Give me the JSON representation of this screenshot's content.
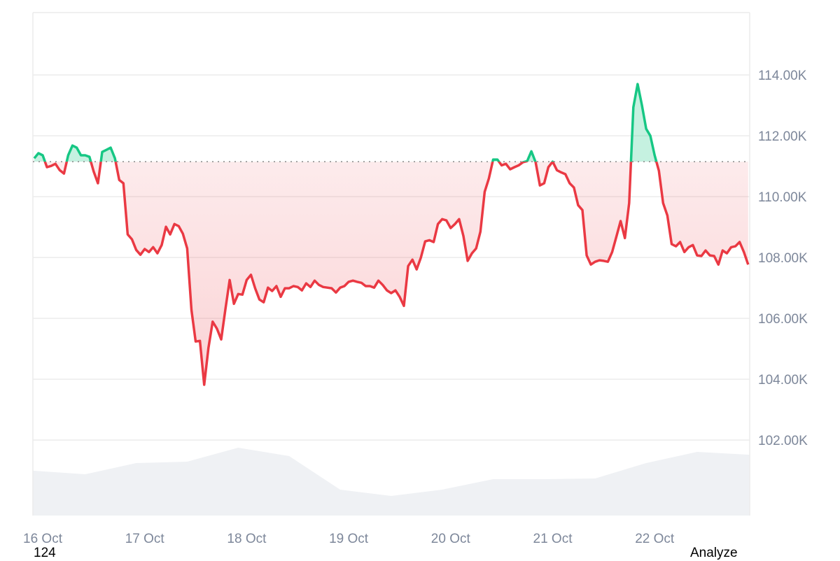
{
  "chart_data": {
    "type": "line",
    "title": "",
    "xlabel": "",
    "ylabel": "",
    "ylim": [
      99.52,
      116.05
    ],
    "y_unit_suffix": "K",
    "y_ticks": [
      102,
      104,
      106,
      108,
      110,
      112,
      114
    ],
    "y_tick_labels": [
      "102.00K",
      "104.00K",
      "106.00K",
      "108.00K",
      "110.00K",
      "112.00K",
      "114.00K"
    ],
    "x_tick_labels": [
      "16 Oct",
      "17 Oct",
      "18 Oct",
      "19 Oct",
      "20 Oct",
      "21 Oct",
      "22 Oct"
    ],
    "grid": true,
    "baseline": 111.15,
    "colors": {
      "above": "#16c784",
      "below": "#ea3943",
      "volume": "#eff1f4",
      "grid": "#ececec",
      "axis_text": "#7d879a"
    },
    "series": [
      {
        "time": [
          "15 Oct 22:00",
          "15 Oct 23:00",
          "16 Oct 00:00",
          "16 Oct 01:00",
          "16 Oct 02:00",
          "16 Oct 03:00",
          "16 Oct 04:00",
          "16 Oct 05:00",
          "16 Oct 06:00",
          "16 Oct 07:00",
          "16 Oct 08:00",
          "16 Oct 09:00",
          "16 Oct 10:00",
          "16 Oct 11:00",
          "16 Oct 12:00",
          "16 Oct 13:00",
          "16 Oct 14:00",
          "16 Oct 15:00",
          "16 Oct 16:00",
          "16 Oct 17:00",
          "16 Oct 18:00",
          "16 Oct 19:00",
          "16 Oct 20:00",
          "16 Oct 21:00",
          "16 Oct 22:00",
          "16 Oct 23:00",
          "17 Oct 00:00",
          "17 Oct 01:00",
          "17 Oct 02:00",
          "17 Oct 03:00",
          "17 Oct 04:00",
          "17 Oct 05:00",
          "17 Oct 06:00",
          "17 Oct 07:00",
          "17 Oct 08:00",
          "17 Oct 09:00",
          "17 Oct 10:00",
          "17 Oct 11:00",
          "17 Oct 12:00",
          "17 Oct 13:00",
          "17 Oct 14:00",
          "17 Oct 15:00",
          "17 Oct 16:00",
          "17 Oct 17:00",
          "17 Oct 18:00",
          "17 Oct 19:00",
          "17 Oct 20:00",
          "17 Oct 21:00",
          "17 Oct 22:00",
          "17 Oct 23:00",
          "18 Oct 00:00",
          "18 Oct 01:00",
          "18 Oct 02:00",
          "18 Oct 03:00",
          "18 Oct 04:00",
          "18 Oct 05:00",
          "18 Oct 06:00",
          "18 Oct 07:00",
          "18 Oct 08:00",
          "18 Oct 09:00",
          "18 Oct 10:00",
          "18 Oct 11:00",
          "18 Oct 12:00",
          "18 Oct 13:00",
          "18 Oct 14:00",
          "18 Oct 15:00",
          "18 Oct 16:00",
          "18 Oct 17:00",
          "18 Oct 18:00",
          "18 Oct 19:00",
          "18 Oct 20:00",
          "18 Oct 21:00",
          "18 Oct 22:00",
          "18 Oct 23:00",
          "19 Oct 00:00",
          "19 Oct 01:00",
          "19 Oct 02:00",
          "19 Oct 03:00",
          "19 Oct 04:00",
          "19 Oct 05:00",
          "19 Oct 06:00",
          "19 Oct 07:00",
          "19 Oct 08:00",
          "19 Oct 09:00",
          "19 Oct 10:00",
          "19 Oct 11:00",
          "19 Oct 12:00",
          "19 Oct 13:00",
          "19 Oct 14:00",
          "19 Oct 15:00",
          "19 Oct 16:00",
          "19 Oct 17:00",
          "19 Oct 18:00",
          "19 Oct 19:00",
          "19 Oct 20:00",
          "19 Oct 21:00",
          "19 Oct 22:00",
          "19 Oct 23:00",
          "20 Oct 00:00",
          "20 Oct 01:00",
          "20 Oct 02:00",
          "20 Oct 03:00",
          "20 Oct 04:00",
          "20 Oct 05:00",
          "20 Oct 06:00",
          "20 Oct 07:00",
          "20 Oct 08:00",
          "20 Oct 09:00",
          "20 Oct 10:00",
          "20 Oct 11:00",
          "20 Oct 12:00",
          "20 Oct 13:00",
          "20 Oct 14:00",
          "20 Oct 15:00",
          "20 Oct 16:00",
          "20 Oct 17:00",
          "20 Oct 18:00",
          "20 Oct 19:00",
          "20 Oct 20:00",
          "20 Oct 21:00",
          "20 Oct 22:00",
          "20 Oct 23:00",
          "21 Oct 00:00",
          "21 Oct 01:00",
          "21 Oct 02:00",
          "21 Oct 03:00",
          "21 Oct 04:00",
          "21 Oct 05:00",
          "21 Oct 06:00",
          "21 Oct 07:00",
          "21 Oct 08:00",
          "21 Oct 09:00",
          "21 Oct 10:00",
          "21 Oct 11:00",
          "21 Oct 12:00",
          "21 Oct 13:00",
          "21 Oct 14:00",
          "21 Oct 15:00",
          "21 Oct 16:00",
          "21 Oct 17:00",
          "21 Oct 18:00",
          "21 Oct 19:00",
          "21 Oct 20:00",
          "21 Oct 21:00",
          "21 Oct 22:00",
          "21 Oct 23:00",
          "22 Oct 00:00",
          "22 Oct 01:00",
          "22 Oct 02:00",
          "22 Oct 03:00",
          "22 Oct 04:00",
          "22 Oct 05:00",
          "22 Oct 06:00",
          "22 Oct 07:00",
          "22 Oct 08:00",
          "22 Oct 09:00",
          "22 Oct 10:00",
          "22 Oct 11:00",
          "22 Oct 12:00",
          "22 Oct 13:00",
          "22 Oct 14:00",
          "22 Oct 15:00",
          "22 Oct 16:00",
          "22 Oct 17:00",
          "22 Oct 18:00",
          "22 Oct 19:00",
          "22 Oct 20:00",
          "22 Oct 21:00",
          "22 Oct 22:00"
        ],
        "values": [
          111.26,
          111.43,
          111.36,
          110.97,
          111.01,
          111.08,
          110.87,
          110.76,
          111.36,
          111.68,
          111.61,
          111.36,
          111.36,
          111.31,
          110.83,
          110.44,
          111.47,
          111.54,
          111.61,
          111.26,
          110.55,
          110.44,
          108.76,
          108.6,
          108.25,
          108.09,
          108.28,
          108.18,
          108.34,
          108.14,
          108.41,
          109.01,
          108.76,
          109.1,
          109.03,
          108.78,
          108.3,
          106.28,
          105.24,
          105.26,
          103.82,
          105.03,
          105.89,
          105.66,
          105.31,
          106.3,
          107.26,
          106.48,
          106.8,
          106.78,
          107.26,
          107.43,
          106.99,
          106.62,
          106.53,
          107.01,
          106.9,
          107.06,
          106.71,
          106.99,
          106.99,
          107.06,
          107.03,
          106.92,
          107.15,
          107.03,
          107.24,
          107.1,
          107.03,
          107.01,
          106.99,
          106.85,
          107.01,
          107.06,
          107.2,
          107.24,
          107.2,
          107.17,
          107.06,
          107.06,
          107.01,
          107.24,
          107.1,
          106.92,
          106.83,
          106.92,
          106.71,
          106.41,
          107.72,
          107.93,
          107.61,
          108.0,
          108.53,
          108.57,
          108.51,
          109.1,
          109.26,
          109.22,
          108.97,
          109.1,
          109.26,
          108.71,
          107.89,
          108.14,
          108.3,
          108.85,
          110.16,
          110.6,
          111.22,
          111.22,
          111.03,
          111.08,
          110.9,
          110.97,
          111.03,
          111.13,
          111.17,
          111.49,
          111.13,
          110.37,
          110.44,
          110.97,
          111.15,
          110.87,
          110.8,
          110.74,
          110.44,
          110.3,
          109.72,
          109.56,
          108.07,
          107.77,
          107.86,
          107.91,
          107.89,
          107.86,
          108.18,
          108.69,
          109.2,
          108.64,
          109.79,
          112.94,
          113.7,
          113.01,
          112.23,
          112.0,
          111.36,
          110.85,
          109.79,
          109.38,
          108.44,
          108.37,
          108.51,
          108.18,
          108.34,
          108.41,
          108.07,
          108.05,
          108.23,
          108.07,
          108.05,
          107.77,
          108.23,
          108.14,
          108.34,
          108.37,
          108.51,
          108.18,
          107.77
        ]
      }
    ],
    "volume_relative": {
      "time": [
        "15 Oct 22:00",
        "16 Oct 10:00",
        "16 Oct 22:00",
        "17 Oct 10:00",
        "17 Oct 22:00",
        "18 Oct 10:00",
        "18 Oct 22:00",
        "19 Oct 10:00",
        "19 Oct 22:00",
        "20 Oct 10:00",
        "20 Oct 22:00",
        "21 Oct 10:00",
        "21 Oct 22:00",
        "22 Oct 10:00",
        "22 Oct 22:00"
      ],
      "values": [
        0.64,
        0.59,
        0.75,
        0.77,
        0.97,
        0.85,
        0.37,
        0.28,
        0.37,
        0.52,
        0.52,
        0.53,
        0.75,
        0.91,
        0.87
      ]
    }
  },
  "footer": {
    "left_text": "124",
    "right_text": "Analyze"
  }
}
